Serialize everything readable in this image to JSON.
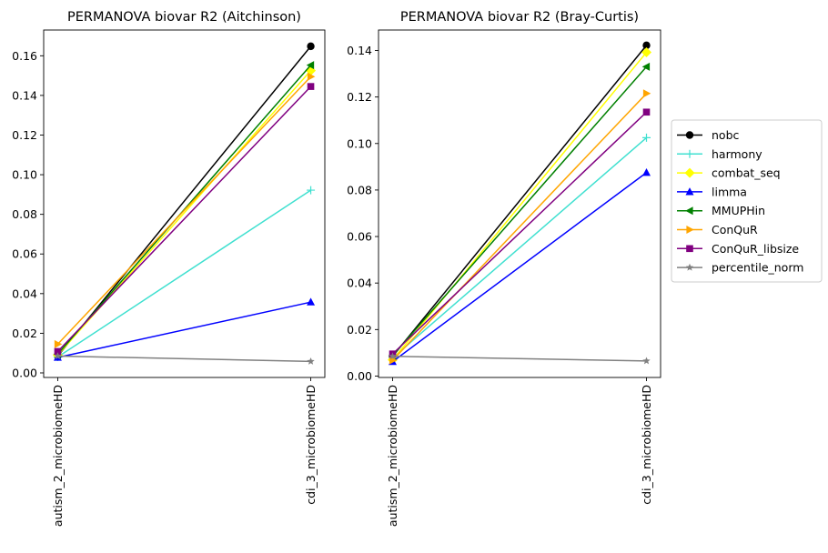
{
  "chart_data": [
    {
      "type": "line",
      "title": "PERMANOVA biovar R2 (Aitchinson)",
      "xlabel": "",
      "ylabel": "",
      "categories": [
        "autism_2_microbiomeHD",
        "cdi_3_microbiomeHD"
      ],
      "ylim": [
        -0.0023,
        0.173
      ],
      "yticks": [
        0.0,
        0.02,
        0.04,
        0.06,
        0.08,
        0.1,
        0.12,
        0.14,
        0.16
      ],
      "ytick_labels": [
        "0.00",
        "0.02",
        "0.04",
        "0.06",
        "0.08",
        "0.10",
        "0.12",
        "0.14",
        "0.16"
      ],
      "grid": false,
      "series": [
        {
          "name": "nobc",
          "values": [
            0.0085,
            0.1648
          ],
          "color": "#000000",
          "marker": "circle"
        },
        {
          "name": "harmony",
          "values": [
            0.008,
            0.0922
          ],
          "color": "#40e0d0",
          "marker": "plus"
        },
        {
          "name": "combat_seq",
          "values": [
            0.009,
            0.1525
          ],
          "color": "#ffff00",
          "marker": "diamond"
        },
        {
          "name": "limma",
          "values": [
            0.0078,
            0.0357
          ],
          "color": "#0000ff",
          "marker": "triangle-up"
        },
        {
          "name": "MMUPHin",
          "values": [
            0.0095,
            0.1553
          ],
          "color": "#008000",
          "marker": "triangle-left"
        },
        {
          "name": "ConQuR",
          "values": [
            0.0145,
            0.1495
          ],
          "color": "#ffa500",
          "marker": "triangle-right"
        },
        {
          "name": "ConQuR_libsize",
          "values": [
            0.0108,
            0.1445
          ],
          "color": "#800080",
          "marker": "square"
        },
        {
          "name": "percentile_norm",
          "values": [
            0.0085,
            0.0058
          ],
          "color": "#808080",
          "marker": "star"
        }
      ]
    },
    {
      "type": "line",
      "title": "PERMANOVA biovar R2 (Bray-Curtis)",
      "xlabel": "",
      "ylabel": "",
      "categories": [
        "autism_2_microbiomeHD",
        "cdi_3_microbiomeHD"
      ],
      "ylim": [
        -0.0006,
        0.1488
      ],
      "yticks": [
        0.0,
        0.02,
        0.04,
        0.06,
        0.08,
        0.1,
        0.12,
        0.14
      ],
      "ytick_labels": [
        "0.00",
        "0.02",
        "0.04",
        "0.06",
        "0.08",
        "0.10",
        "0.12",
        "0.14"
      ],
      "grid": false,
      "series": [
        {
          "name": "nobc",
          "values": [
            0.0085,
            0.1422
          ],
          "color": "#000000",
          "marker": "circle"
        },
        {
          "name": "harmony",
          "values": [
            0.0078,
            0.1025
          ],
          "color": "#40e0d0",
          "marker": "plus"
        },
        {
          "name": "combat_seq",
          "values": [
            0.007,
            0.1392
          ],
          "color": "#ffff00",
          "marker": "diamond"
        },
        {
          "name": "limma",
          "values": [
            0.0062,
            0.0875
          ],
          "color": "#0000ff",
          "marker": "triangle-up"
        },
        {
          "name": "MMUPHin",
          "values": [
            0.0088,
            0.133
          ],
          "color": "#008000",
          "marker": "triangle-left"
        },
        {
          "name": "ConQuR",
          "values": [
            0.0068,
            0.1215
          ],
          "color": "#ffa500",
          "marker": "triangle-right"
        },
        {
          "name": "ConQuR_libsize",
          "values": [
            0.0095,
            0.1135
          ],
          "color": "#800080",
          "marker": "square"
        },
        {
          "name": "percentile_norm",
          "values": [
            0.0085,
            0.0065
          ],
          "color": "#808080",
          "marker": "star"
        }
      ]
    }
  ],
  "legend": {
    "placement": "right, outside",
    "items": [
      {
        "name": "nobc",
        "color": "#000000",
        "marker": "circle"
      },
      {
        "name": "harmony",
        "color": "#40e0d0",
        "marker": "plus"
      },
      {
        "name": "combat_seq",
        "color": "#ffff00",
        "marker": "diamond"
      },
      {
        "name": "limma",
        "color": "#0000ff",
        "marker": "triangle-up"
      },
      {
        "name": "MMUPHin",
        "color": "#008000",
        "marker": "triangle-left"
      },
      {
        "name": "ConQuR",
        "color": "#ffa500",
        "marker": "triangle-right"
      },
      {
        "name": "ConQuR_libsize",
        "color": "#800080",
        "marker": "square"
      },
      {
        "name": "percentile_norm",
        "color": "#808080",
        "marker": "star"
      }
    ]
  }
}
